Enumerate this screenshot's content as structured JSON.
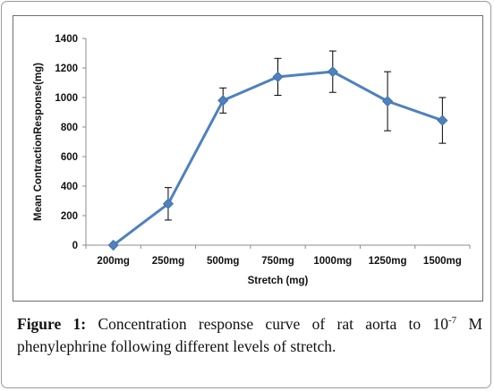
{
  "chart_data": {
    "type": "line",
    "title": "",
    "xlabel": "Stretch (mg)",
    "ylabel": "Mean ContractionResponse(mg)",
    "categories": [
      "200mg",
      "250mg",
      "500mg",
      "750mg",
      "1000mg",
      "1250mg",
      "1500mg"
    ],
    "ylim": [
      0,
      1400
    ],
    "yticks": [
      0,
      200,
      400,
      600,
      800,
      1000,
      1200,
      1400
    ],
    "grid": false,
    "legend": "none",
    "series": [
      {
        "values": [
          0,
          280,
          980,
          1140,
          1175,
          975,
          845
        ],
        "error": [
          0,
          110,
          85,
          125,
          140,
          200,
          155
        ],
        "color": "#4f81bd",
        "marker": "diamond"
      }
    ]
  },
  "caption": {
    "label": "Figure 1:",
    "text_before": "Concentration response curve of rat aorta to 10",
    "superscript": "-7",
    "text_after": "M phenylephrine following different levels of stretch."
  }
}
